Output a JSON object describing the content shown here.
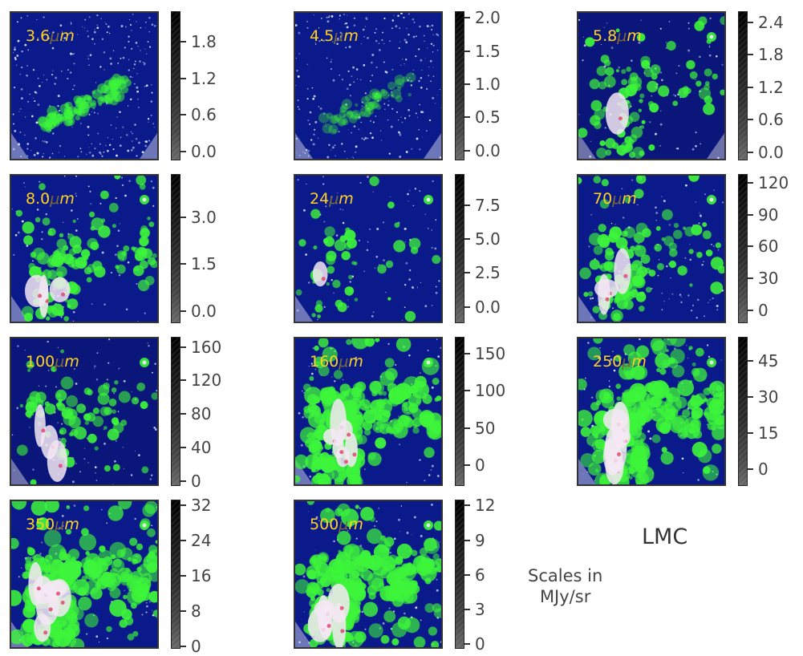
{
  "figure_label": "LMC",
  "scale_note": [
    "Scales in",
    "MJy/sr"
  ],
  "panels": [
    {
      "band": "3.6",
      "unit_mu": "μ",
      "unit_m": "m",
      "ticks": [
        "1.8",
        "1.2",
        "0.6",
        "0.0"
      ],
      "tick_values": [
        1.8,
        1.2,
        0.6,
        0.0
      ],
      "range": [
        -0.15,
        2.3
      ],
      "style": "stellar-bar"
    },
    {
      "band": "4.5",
      "unit_mu": "μ",
      "unit_m": "m",
      "ticks": [
        "2.0",
        "1.5",
        "1.0",
        "0.5",
        "0.0"
      ],
      "tick_values": [
        2.0,
        1.5,
        1.0,
        0.5,
        0.0
      ],
      "range": [
        -0.15,
        2.1
      ],
      "style": "stellar-bar-faint"
    },
    {
      "band": "5.8",
      "unit_mu": "μ",
      "unit_m": "m",
      "ticks": [
        "2.4",
        "1.8",
        "1.2",
        "0.6",
        "0.0"
      ],
      "tick_values": [
        2.4,
        1.8,
        1.2,
        0.6,
        0.0
      ],
      "range": [
        -0.15,
        2.6
      ],
      "style": "dark-mixed"
    },
    {
      "band": "8.0",
      "unit_mu": "μ",
      "unit_m": "m",
      "ticks": [
        "3.0",
        "1.5",
        "0.0"
      ],
      "tick_values": [
        3.0,
        1.5,
        0.0
      ],
      "range": [
        -0.4,
        4.4
      ],
      "style": "dust-medium"
    },
    {
      "band": "24",
      "unit_mu": "μ",
      "unit_m": "m",
      "ticks": [
        "7.5",
        "5.0",
        "2.5",
        "0.0"
      ],
      "tick_values": [
        7.5,
        5.0,
        2.5,
        0.0
      ],
      "range": [
        -1.2,
        9.8
      ],
      "style": "dust-sparse"
    },
    {
      "band": "70",
      "unit_mu": "μ",
      "unit_m": "m",
      "ticks": [
        "120",
        "90",
        "60",
        "30",
        "0"
      ],
      "tick_values": [
        120,
        90,
        60,
        30,
        0
      ],
      "range": [
        -12,
        128
      ],
      "style": "dust-medium"
    },
    {
      "band": "100",
      "unit_mu": "μ",
      "unit_m": "m",
      "ticks": [
        "160",
        "120",
        "80",
        "40",
        "0"
      ],
      "tick_values": [
        160,
        120,
        80,
        40,
        0
      ],
      "range": [
        -6,
        172
      ],
      "style": "dust-dark"
    },
    {
      "band": "160",
      "unit_mu": "μ",
      "unit_m": "m",
      "ticks": [
        "150",
        "100",
        "50",
        "0"
      ],
      "tick_values": [
        150,
        100,
        50,
        0
      ],
      "range": [
        -28,
        172
      ],
      "style": "dust-dense"
    },
    {
      "band": "250",
      "unit_mu": "μ",
      "unit_m": "m",
      "ticks": [
        "45",
        "30",
        "15",
        "0"
      ],
      "tick_values": [
        45,
        30,
        15,
        0
      ],
      "range": [
        -7,
        55
      ],
      "style": "dust-dense"
    },
    {
      "band": "350",
      "unit_mu": "μ",
      "unit_m": "m",
      "ticks": [
        "32",
        "24",
        "16",
        "8",
        "0"
      ],
      "tick_values": [
        32,
        24,
        16,
        8,
        0
      ],
      "range": [
        -0.5,
        33.3
      ],
      "style": "dust-dense"
    },
    {
      "band": "500",
      "unit_mu": "μ",
      "unit_m": "m",
      "ticks": [
        "12",
        "9",
        "6",
        "3",
        "0"
      ],
      "tick_values": [
        12,
        9,
        6,
        3,
        0
      ],
      "range": [
        -0.4,
        12.5
      ],
      "style": "dust-dense"
    }
  ],
  "colors": {
    "background": "#0b1a8a",
    "emission": "#3df53a",
    "peak": "#f4e8f4",
    "hot": "#e0406a",
    "label": "#ffd21f"
  }
}
